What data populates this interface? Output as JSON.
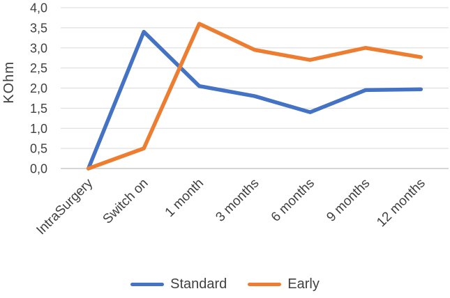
{
  "chart_data": {
    "type": "line",
    "title": "",
    "xlabel": "",
    "ylabel": "KOhm",
    "categories": [
      "IntraSurgery",
      "Switch on",
      "1 month",
      "3 months",
      "6 months",
      "9 months",
      "12 months"
    ],
    "series": [
      {
        "name": "Standard",
        "color": "#4472C4",
        "values": [
          0.0,
          3.4,
          2.05,
          1.8,
          1.4,
          1.95,
          1.97
        ]
      },
      {
        "name": "Early",
        "color": "#ED7D31",
        "values": [
          0.0,
          0.5,
          3.6,
          2.95,
          2.7,
          3.0,
          2.77
        ]
      }
    ],
    "ylim": [
      0,
      4
    ],
    "ytick_step": 0.5,
    "ytick_labels": [
      "0,0",
      "0,5",
      "1,0",
      "1,5",
      "2,0",
      "2,5",
      "3,0",
      "3,5",
      "4,0"
    ],
    "decimal_separator": ",",
    "grid": true,
    "legend_position": "bottom",
    "colors": {
      "gridline": "#D9D9D9",
      "axis_line": "#C9C9C9",
      "text": "#404040"
    }
  }
}
